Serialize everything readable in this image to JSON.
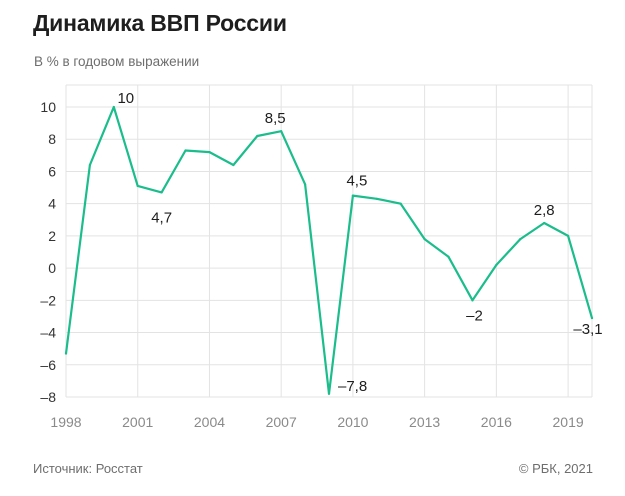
{
  "header": {
    "title": "Динамика ВВП России",
    "subtitle": "В % в годовом выражении"
  },
  "footer": {
    "source": "Источник: Росстат",
    "copyright": "© РБК, 2021"
  },
  "colors": {
    "line": "#1bbd8b",
    "grid": "#e3e3e3",
    "tick_text": "#333333",
    "x_tick_text": "#8a8a8a"
  },
  "chart_data": {
    "type": "line",
    "title": "Динамика ВВП России",
    "subtitle": "В % в годовом выражении",
    "xlabel": "",
    "ylabel": "",
    "ylim": [
      -8,
      10
    ],
    "xlim": [
      1998,
      2020
    ],
    "grid": true,
    "legend": "none",
    "y_ticks": [
      10,
      8,
      6,
      4,
      2,
      0,
      -2,
      -4,
      -6,
      -8
    ],
    "y_tick_labels": [
      "10",
      "8",
      "6",
      "4",
      "2",
      "0",
      "–2",
      "–4",
      "–6",
      "–8"
    ],
    "x_ticks": [
      1998,
      2001,
      2004,
      2007,
      2010,
      2013,
      2016,
      2019
    ],
    "x_tick_labels": [
      "1998",
      "2001",
      "2004",
      "2007",
      "2010",
      "2013",
      "2016",
      "2019"
    ],
    "series": [
      {
        "x": [
          1998,
          1999,
          2000,
          2001,
          2002,
          2003,
          2004,
          2005,
          2006,
          2007,
          2008,
          2009,
          2010,
          2011,
          2012,
          2013,
          2014,
          2015,
          2016,
          2017,
          2018,
          2019,
          2020
        ],
        "values": [
          -5.3,
          6.4,
          10,
          5.1,
          4.7,
          7.3,
          7.2,
          6.4,
          8.2,
          8.5,
          5.2,
          -7.8,
          4.5,
          4.3,
          4.0,
          1.8,
          0.7,
          -2.0,
          0.2,
          1.8,
          2.8,
          2.0,
          -3.1
        ]
      }
    ],
    "annotations": [
      {
        "x": 2000,
        "y": 10,
        "text": "10"
      },
      {
        "x": 2002,
        "y": 4.7,
        "text": "4,7"
      },
      {
        "x": 2007,
        "y": 8.5,
        "text": "8,5"
      },
      {
        "x": 2009,
        "y": -7.8,
        "text": "–7,8"
      },
      {
        "x": 2010,
        "y": 4.5,
        "text": "4,5"
      },
      {
        "x": 2015,
        "y": -2,
        "text": "–2"
      },
      {
        "x": 2018,
        "y": 2.8,
        "text": "2,8"
      },
      {
        "x": 2020,
        "y": -3.1,
        "text": "–3,1"
      }
    ]
  }
}
